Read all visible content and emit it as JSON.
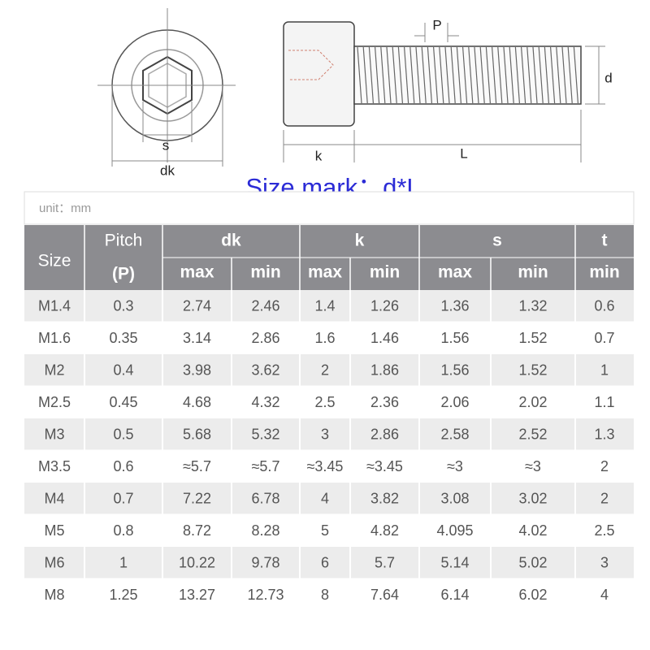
{
  "diagram": {
    "labels": {
      "s": "s",
      "dk": "dk",
      "P": "P",
      "d": "d",
      "k": "k",
      "L": "L"
    }
  },
  "size_mark": "Size mark：d*L",
  "unit": "unit：mm",
  "table": {
    "header": {
      "size": "Size",
      "pitch": "Pitch",
      "pitch_symbol": "(P)",
      "dk": "dk",
      "k": "k",
      "s": "s",
      "t": "t",
      "sub": [
        "max",
        "min",
        "max",
        "min",
        "max",
        "min",
        "min"
      ]
    },
    "rows": [
      [
        "M1.4",
        "0.3",
        "2.74",
        "2.46",
        "1.4",
        "1.26",
        "1.36",
        "1.32",
        "0.6"
      ],
      [
        "M1.6",
        "0.35",
        "3.14",
        "2.86",
        "1.6",
        "1.46",
        "1.56",
        "1.52",
        "0.7"
      ],
      [
        "M2",
        "0.4",
        "3.98",
        "3.62",
        "2",
        "1.86",
        "1.56",
        "1.52",
        "1"
      ],
      [
        "M2.5",
        "0.45",
        "4.68",
        "4.32",
        "2.5",
        "2.36",
        "2.06",
        "2.02",
        "1.1"
      ],
      [
        "M3",
        "0.5",
        "5.68",
        "5.32",
        "3",
        "2.86",
        "2.58",
        "2.52",
        "1.3"
      ],
      [
        "M3.5",
        "0.6",
        "≈5.7",
        "≈5.7",
        "≈3.45",
        "≈3.45",
        "≈3",
        "≈3",
        "2"
      ],
      [
        "M4",
        "0.7",
        "7.22",
        "6.78",
        "4",
        "3.82",
        "3.08",
        "3.02",
        "2"
      ],
      [
        "M5",
        "0.8",
        "8.72",
        "8.28",
        "5",
        "4.82",
        "4.095",
        "4.02",
        "2.5"
      ],
      [
        "M6",
        "1",
        "10.22",
        "9.78",
        "6",
        "5.7",
        "5.14",
        "5.02",
        "3"
      ],
      [
        "M8",
        "1.25",
        "13.27",
        "12.73",
        "8",
        "7.64",
        "6.14",
        "6.02",
        "4"
      ]
    ]
  }
}
